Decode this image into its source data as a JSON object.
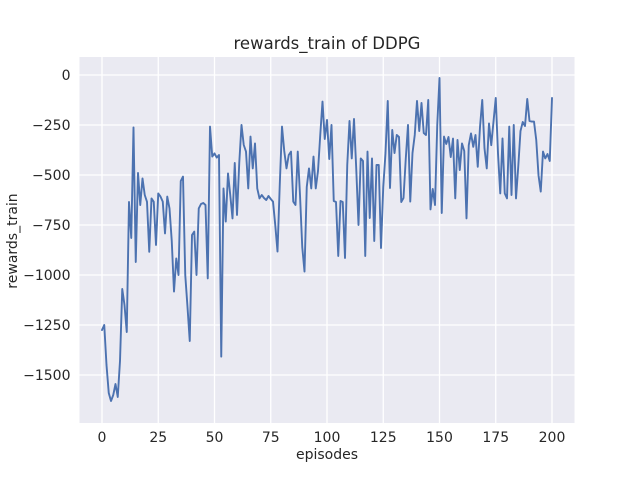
{
  "figure": {
    "title": "rewards_train of DDPG",
    "xlabel": "episodes",
    "ylabel": "rewards_train"
  },
  "colors": {
    "line": "#4c72b0",
    "plot_background": "#eaeaf2",
    "grid": "#ffffff",
    "text": "#262626",
    "figure_background": "#ffffff"
  },
  "chart_data": {
    "type": "line",
    "title": "rewards_train of DDPG",
    "xlabel": "episodes",
    "ylabel": "rewards_train",
    "grid": true,
    "legend": "none",
    "x_start": 0,
    "x_step": 1,
    "xlim": [
      -10,
      210
    ],
    "ylim": [
      -1740,
      90
    ],
    "xticks": {
      "values": [
        0,
        25,
        50,
        75,
        100,
        125,
        150,
        175,
        200
      ],
      "labels": [
        "0",
        "25",
        "50",
        "75",
        "100",
        "125",
        "150",
        "175",
        "200"
      ]
    },
    "yticks": {
      "values": [
        0,
        -250,
        -500,
        -750,
        -1000,
        -1250,
        -1500
      ],
      "labels": [
        "0",
        "−250",
        "−500",
        "−750",
        "−1000",
        "−1250",
        "−1500"
      ]
    },
    "series": [
      {
        "name": "rewards_train",
        "color": "#4c72b0",
        "values": [
          -1275,
          -1250,
          -1450,
          -1590,
          -1630,
          -1600,
          -1545,
          -1610,
          -1430,
          -1070,
          -1150,
          -1285,
          -635,
          -815,
          -262,
          -935,
          -490,
          -650,
          -517,
          -600,
          -634,
          -884,
          -617,
          -634,
          -850,
          -592,
          -608,
          -633,
          -792,
          -608,
          -667,
          -830,
          -1083,
          -917,
          -1000,
          -530,
          -508,
          -1000,
          -1160,
          -1330,
          -800,
          -783,
          -1000,
          -667,
          -645,
          -640,
          -650,
          -1017,
          -258,
          -408,
          -392,
          -413,
          -400,
          -1408,
          -567,
          -733,
          -492,
          -600,
          -717,
          -440,
          -700,
          -440,
          -250,
          -350,
          -383,
          -567,
          -308,
          -467,
          -342,
          -567,
          -617,
          -600,
          -615,
          -625,
          -605,
          -620,
          -633,
          -750,
          -883,
          -550,
          -258,
          -380,
          -467,
          -400,
          -383,
          -633,
          -650,
          -383,
          -600,
          -860,
          -983,
          -560,
          -467,
          -567,
          -408,
          -567,
          -480,
          -300,
          -133,
          -320,
          -225,
          -420,
          -250,
          -630,
          -635,
          -905,
          -630,
          -635,
          -915,
          -450,
          -230,
          -417,
          -220,
          -470,
          -750,
          -417,
          -430,
          -905,
          -383,
          -715,
          -417,
          -830,
          -450,
          -450,
          -865,
          -560,
          -390,
          -130,
          -565,
          -275,
          -390,
          -300,
          -310,
          -635,
          -615,
          -420,
          -250,
          -633,
          -390,
          -300,
          -130,
          -280,
          -140,
          -290,
          -300,
          -125,
          -672,
          -570,
          -650,
          -250,
          -15,
          -690,
          -308,
          -345,
          -310,
          -410,
          -318,
          -617,
          -325,
          -475,
          -342,
          -380,
          -717,
          -351,
          -292,
          -359,
          -300,
          -459,
          -260,
          -125,
          -367,
          -467,
          -242,
          -351,
          -233,
          -115,
          -392,
          -592,
          -317,
          -592,
          -617,
          -258,
          -600,
          -250,
          -617,
          -458,
          -280,
          -235,
          -255,
          -120,
          -230,
          -233,
          -233,
          -325,
          -501,
          -583,
          -383,
          -417,
          -395,
          -430,
          -115
        ]
      }
    ]
  }
}
